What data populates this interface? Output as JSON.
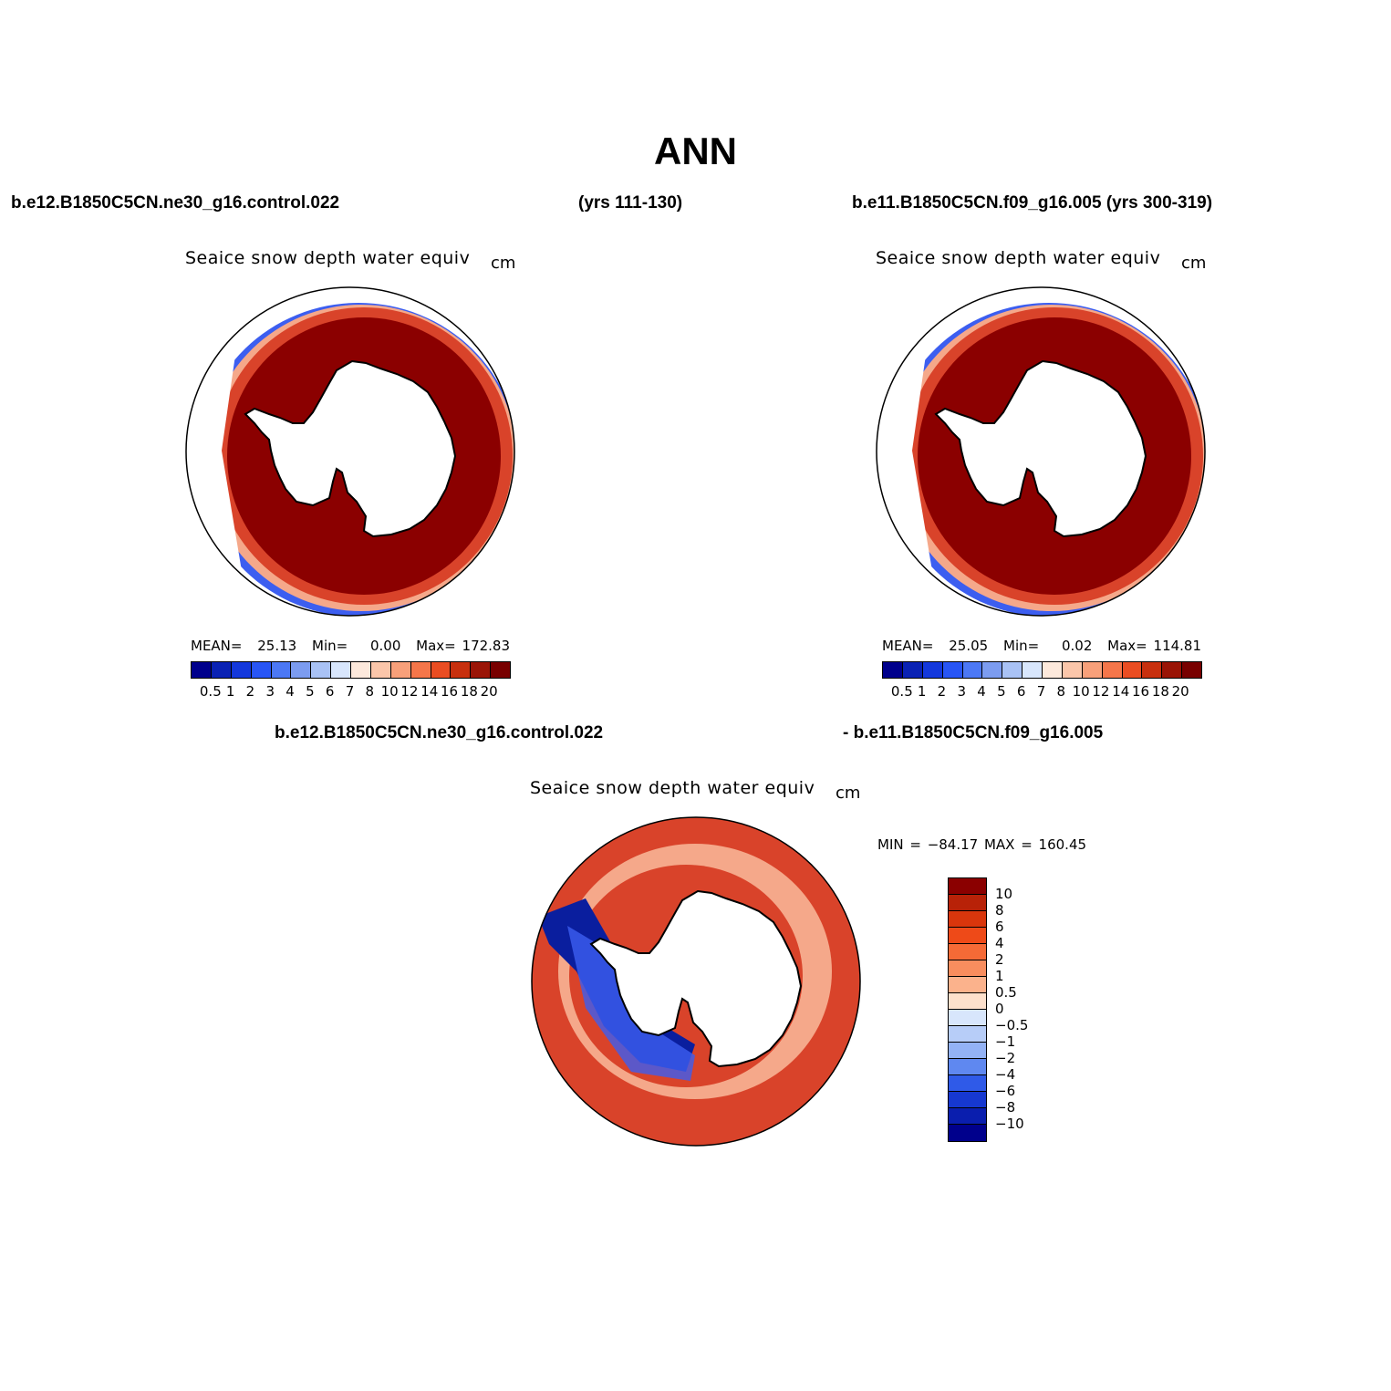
{
  "title": "ANN",
  "cases": {
    "left": "b.e12.B1850C5CN.ne30_g16.control.022",
    "left_years": "(yrs 111-130)",
    "right": "b.e11.B1850C5CN.f09_g16.005 (yrs 300-319)",
    "diff_left": "b.e12.B1850C5CN.ne30_g16.control.022",
    "diff_right": "- b.e11.B1850C5CN.f09_g16.005"
  },
  "panels": [
    {
      "title": "Seaice snow depth water equiv",
      "units": "cm",
      "stats": {
        "mean_label": "MEAN=",
        "mean": "25.13",
        "min_label": "Min=",
        "min": "0.00",
        "max_label": "Max=",
        "max": "172.83"
      }
    },
    {
      "title": "Seaice snow depth water equiv",
      "units": "cm",
      "stats": {
        "mean_label": "MEAN=",
        "mean": "25.05",
        "min_label": "Min=",
        "min": "0.02",
        "max_label": "Max=",
        "max": "114.81"
      }
    },
    {
      "title": "Seaice snow depth water equiv",
      "units": "cm",
      "stats": {
        "minmax": "MIN = −84.17 MAX = 160.45"
      }
    }
  ],
  "colorbar_main": {
    "labels": [
      "0.5",
      "1",
      "2",
      "3",
      "4",
      "5",
      "6",
      "7",
      "8",
      "10",
      "12",
      "14",
      "16",
      "18",
      "20"
    ],
    "colors": [
      "#00008c",
      "#0a22b4",
      "#1438dc",
      "#2855f5",
      "#4c78f5",
      "#7c9cf0",
      "#a9c2f5",
      "#d8e6fc",
      "#fde9dc",
      "#fbc6aa",
      "#f8a07a",
      "#f5764a",
      "#ea4d22",
      "#c8300e",
      "#9a1406",
      "#780000"
    ]
  },
  "colorbar_diff": {
    "labels": [
      "10",
      "8",
      "6",
      "4",
      "2",
      "1",
      "0.5",
      "0",
      "−0.5",
      "−1",
      "−2",
      "−4",
      "−6",
      "−8",
      "−10"
    ],
    "colors": [
      "#8b0000",
      "#b82208",
      "#d9360c",
      "#ee4a18",
      "#f56a36",
      "#f88d5e",
      "#fbb28c",
      "#fde0cc",
      "#d8e6fc",
      "#b7cdf8",
      "#93b2f5",
      "#5f88f0",
      "#2f5ae8",
      "#1638d0",
      "#0a1eae",
      "#00008c"
    ]
  },
  "map_colors": {
    "ice_high": "#8b0000",
    "ice_mid": "#d9432a",
    "ice_low": "#f5a88a",
    "open_low": "#3c5ef0",
    "deep_neg": "#0a1e9e",
    "land": "#ffffff",
    "outline": "#000000"
  }
}
